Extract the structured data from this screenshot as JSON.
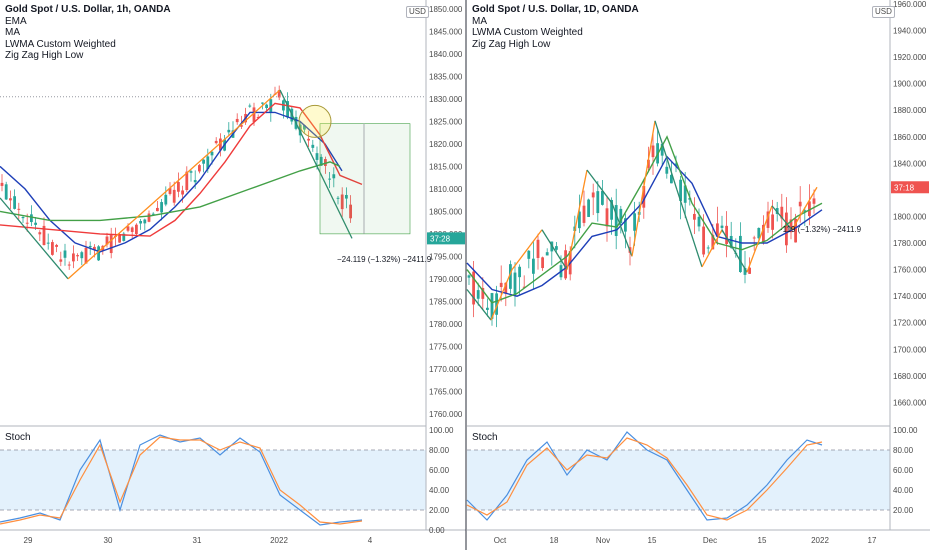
{
  "chart_data": [
    {
      "type": "line",
      "title": "Gold Spot / U.S. Dollar, 1h, OANDA",
      "currency_badge": "USD",
      "indicators": [
        "EMA",
        "MA",
        "LWMA Custom Weighted",
        "Zig Zag High Low"
      ],
      "price_axis": {
        "ticks": [
          "1850.000",
          "1845.000",
          "1840.000",
          "1835.000",
          "1830.000",
          "1825.000",
          "1820.000",
          "1815.000",
          "1810.000",
          "1805.000",
          "1800.000",
          "1795.000",
          "1790.000",
          "1785.000",
          "1780.000",
          "1775.000",
          "1770.000",
          "1765.000",
          "1760.000"
        ],
        "current_price_label": "37:28"
      },
      "time_axis": {
        "ticks": [
          "29",
          "30",
          "31",
          "2022",
          "4"
        ]
      },
      "measurement_label": "−24.119 (−1.32%) −2411.9",
      "oscillator": {
        "name": "Stoch",
        "ticks": [
          "100.00",
          "80.00",
          "60.00",
          "40.00",
          "20.00",
          "0.00"
        ],
        "levels": [
          80,
          20
        ]
      },
      "colors": {
        "up": "#26a69a",
        "down": "#ef5350",
        "ema": "#1e3fb8",
        "ma": "#ef3b3b",
        "lwma": "#43a047",
        "zigzag_up": "#ff8f1f",
        "zigzag_down": "#2e8b6e",
        "stoch_k": "#4a8fe0",
        "stoch_d": "#ff8f3f",
        "band": "#e3f1fc"
      },
      "series": [
        {
          "name": "EMA",
          "x": [
            0,
            25,
            50,
            75,
            100,
            125,
            150,
            175,
            200,
            225,
            250,
            275,
            300,
            325,
            342
          ],
          "values": [
            1815,
            1810,
            1803,
            1798,
            1796,
            1798,
            1801,
            1806,
            1812,
            1820,
            1827,
            1827,
            1825,
            1820,
            1814
          ]
        },
        {
          "name": "MA",
          "x": [
            0,
            50,
            100,
            150,
            175,
            200,
            225,
            250,
            275,
            300,
            320,
            340,
            362
          ],
          "values": [
            1802,
            1801,
            1800,
            1799.5,
            1803,
            1809,
            1816,
            1824,
            1829,
            1828,
            1822,
            1813,
            1811
          ]
        },
        {
          "name": "LWMA Custom Weighted",
          "x": [
            0,
            50,
            100,
            150,
            200,
            250,
            300,
            330,
            340
          ],
          "values": [
            1805,
            1803,
            1803,
            1804,
            1806,
            1810,
            1814,
            1816,
            1815
          ]
        },
        {
          "name": "Zig Zag High Low",
          "x": [
            0,
            68,
            280,
            352
          ],
          "values": [
            1808,
            1790,
            1832,
            1799
          ]
        }
      ],
      "stoch_series": [
        {
          "name": "%K",
          "x": [
            0,
            20,
            40,
            60,
            80,
            100,
            120,
            140,
            160,
            180,
            200,
            220,
            240,
            260,
            280,
            300,
            320,
            340,
            362
          ],
          "values": [
            8,
            12,
            17,
            10,
            60,
            90,
            20,
            85,
            95,
            88,
            92,
            75,
            92,
            78,
            35,
            20,
            5,
            8,
            10
          ]
        },
        {
          "name": "%D",
          "x": [
            0,
            20,
            40,
            60,
            80,
            100,
            120,
            140,
            160,
            180,
            200,
            220,
            240,
            260,
            280,
            300,
            320,
            340,
            362
          ],
          "values": [
            6,
            10,
            15,
            12,
            50,
            85,
            28,
            75,
            93,
            90,
            90,
            80,
            88,
            82,
            40,
            25,
            8,
            6,
            9
          ]
        }
      ]
    },
    {
      "type": "line",
      "title": "Gold Spot / U.S. Dollar, 1D, OANDA",
      "currency_badge": "USD",
      "indicators": [
        "MA",
        "LWMA Custom Weighted",
        "Zig Zag High Low"
      ],
      "price_axis": {
        "ticks": [
          "1960.000",
          "1940.000",
          "1920.000",
          "1900.000",
          "1880.000",
          "1860.000",
          "1840.000",
          "1820.000",
          "1800.000",
          "1780.000",
          "1760.000",
          "1740.000",
          "1720.000",
          "1700.000",
          "1680.000",
          "1660.000"
        ],
        "current_price_label": "37:18"
      },
      "time_axis": {
        "ticks": [
          "Oct",
          "18",
          "Nov",
          "15",
          "Dec",
          "15",
          "2022",
          "17"
        ]
      },
      "measurement_label": "·119 (−1.32%) −2411.9",
      "oscillator": {
        "name": "Stoch",
        "ticks": [
          "100.00",
          "80.00",
          "60.00",
          "40.00",
          "20.00"
        ],
        "levels": [
          80,
          20
        ]
      },
      "colors": {
        "up": "#26a69a",
        "down": "#ef5350",
        "ma": "#1e3fb8",
        "lwma": "#43a047",
        "zigzag_up": "#ff8f1f",
        "zigzag_down": "#2e8b6e",
        "stoch_k": "#4a8fe0",
        "stoch_d": "#ff8f3f",
        "band": "#e3f1fc"
      },
      "series": [
        {
          "name": "MA",
          "x": [
            0,
            25,
            50,
            75,
            100,
            125,
            150,
            175,
            200,
            225,
            250,
            275,
            300,
            330,
            355
          ],
          "values": [
            1765,
            1745,
            1740,
            1748,
            1762,
            1785,
            1790,
            1810,
            1845,
            1825,
            1785,
            1780,
            1780,
            1792,
            1805
          ]
        },
        {
          "name": "LWMA Custom Weighted",
          "x": [
            0,
            25,
            50,
            75,
            100,
            125,
            150,
            175,
            200,
            225,
            250,
            275,
            300,
            330,
            355
          ],
          "values": [
            1760,
            1735,
            1742,
            1756,
            1770,
            1795,
            1792,
            1825,
            1860,
            1810,
            1780,
            1775,
            1782,
            1800,
            1810
          ]
        },
        {
          "name": "Zig Zag High Low",
          "x": [
            0,
            24,
            45,
            75,
            100,
            120,
            145,
            165,
            188,
            210,
            235,
            255,
            280,
            305,
            325,
            350
          ],
          "values": [
            1745,
            1722,
            1760,
            1790,
            1760,
            1835,
            1810,
            1770,
            1872,
            1820,
            1762,
            1790,
            1758,
            1808,
            1790,
            1822
          ]
        }
      ],
      "stoch_series": [
        {
          "name": "%K",
          "x": [
            0,
            20,
            40,
            60,
            80,
            100,
            120,
            140,
            160,
            180,
            200,
            220,
            240,
            260,
            280,
            300,
            320,
            340,
            355
          ],
          "values": [
            30,
            10,
            35,
            70,
            88,
            55,
            80,
            70,
            98,
            80,
            70,
            40,
            10,
            12,
            25,
            45,
            70,
            90,
            85
          ]
        },
        {
          "name": "%D",
          "x": [
            0,
            20,
            40,
            60,
            80,
            100,
            120,
            140,
            160,
            180,
            200,
            220,
            240,
            260,
            280,
            300,
            320,
            340,
            355
          ],
          "values": [
            25,
            15,
            28,
            65,
            82,
            60,
            75,
            72,
            92,
            85,
            72,
            45,
            15,
            10,
            20,
            40,
            62,
            85,
            88
          ]
        }
      ]
    }
  ]
}
